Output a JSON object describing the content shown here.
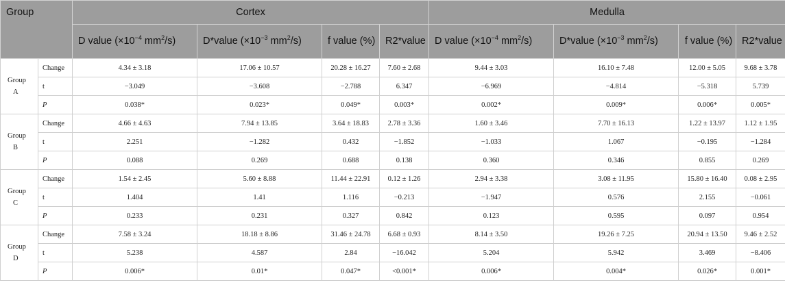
{
  "header": {
    "group_label": "Group",
    "cortex_label": "Cortex",
    "medulla_label": "Medulla",
    "columns": [
      {
        "pre": "D value (×10",
        "sup": "−4",
        "post": " mm",
        "sup2": "2",
        "tail": "/s)"
      },
      {
        "pre": "D*value (×10",
        "sup": "−3",
        "post": " mm",
        "sup2": "2",
        "tail": "/s)"
      },
      {
        "pre": "f value (%)",
        "sup": "",
        "post": "",
        "sup2": "",
        "tail": ""
      },
      {
        "pre": "R2*value",
        "sup": "",
        "post": "",
        "sup2": "",
        "tail": ""
      }
    ]
  },
  "groups": [
    {
      "name_line1": "Group",
      "name_line2": "A",
      "rows": [
        {
          "label": "Change",
          "values": [
            "4.34 ± 3.18",
            "17.06 ± 10.57",
            "20.28 ± 16.27",
            "7.60 ± 2.68",
            "9.44 ± 3.03",
            "16.10 ± 7.48",
            "12.00 ± 5.05",
            "9.68 ± 3.78"
          ]
        },
        {
          "label": "t",
          "values": [
            "−3.049",
            "−3.608",
            "−2.788",
            "6.347",
            "−6.969",
            "−4.814",
            "−5.318",
            "5.739"
          ]
        },
        {
          "label": "P",
          "values": [
            "0.038*",
            "0.023*",
            "0.049*",
            "0.003*",
            "0.002*",
            "0.009*",
            "0.006*",
            "0.005*"
          ]
        }
      ]
    },
    {
      "name_line1": "Group",
      "name_line2": "B",
      "rows": [
        {
          "label": "Change",
          "values": [
            "4.66 ± 4.63",
            "7.94 ± 13.85",
            "3.64 ± 18.83",
            "2.78 ± 3.36",
            "1.60 ± 3.46",
            "7.70 ± 16.13",
            "1.22 ± 13.97",
            "1.12 ± 1.95"
          ]
        },
        {
          "label": "t",
          "values": [
            "2.251",
            "−1.282",
            "0.432",
            "−1.852",
            "−1.033",
            "1.067",
            "−0.195",
            "−1.284"
          ]
        },
        {
          "label": "P",
          "values": [
            "0.088",
            "0.269",
            "0.688",
            "0.138",
            "0.360",
            "0.346",
            "0.855",
            "0.269"
          ]
        }
      ]
    },
    {
      "name_line1": "Group",
      "name_line2": "C",
      "rows": [
        {
          "label": "Change",
          "values": [
            "1.54 ± 2.45",
            "5.60 ± 8.88",
            "11.44 ± 22.91",
            "0.12 ± 1.26",
            "2.94 ± 3.38",
            "3.08 ± 11.95",
            "15.80 ± 16.40",
            "0.08 ± 2.95"
          ]
        },
        {
          "label": "t",
          "values": [
            "1.404",
            "1.41",
            "1.116",
            "−0.213",
            "−1.947",
            "0.576",
            "2.155",
            "−0.061"
          ]
        },
        {
          "label": "P",
          "values": [
            "0.233",
            "0.231",
            "0.327",
            "0.842",
            "0.123",
            "0.595",
            "0.097",
            "0.954"
          ]
        }
      ]
    },
    {
      "name_line1": "Group",
      "name_line2": "D",
      "rows": [
        {
          "label": "Change",
          "values": [
            "7.58 ± 3.24",
            "18.18 ± 8.86",
            "31.46 ± 24.78",
            "6.68 ± 0.93",
            "8.14 ± 3.50",
            "19.26 ± 7.25",
            "20.94 ± 13.50",
            "9.46 ± 2.52"
          ]
        },
        {
          "label": "t",
          "values": [
            "5.238",
            "4.587",
            "2.84",
            "−16.042",
            "5.204",
            "5.942",
            "3.469",
            "−8.406"
          ]
        },
        {
          "label": "P",
          "values": [
            "0.006*",
            "0.01*",
            "0.047*",
            "<0.001*",
            "0.006*",
            "0.004*",
            "0.026*",
            "0.001*"
          ]
        }
      ]
    }
  ]
}
